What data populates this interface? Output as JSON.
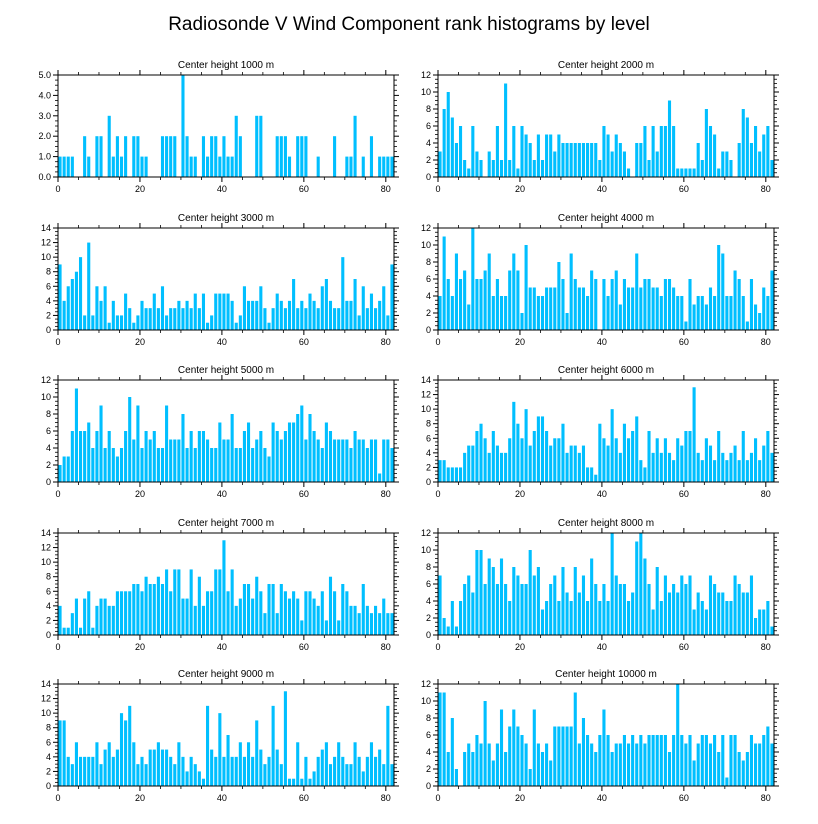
{
  "figure": {
    "title": "Radiosonde V Wind Component rank histograms by level",
    "bar_color": "#00BFFF",
    "axis_color": "#000000"
  },
  "chart_data": [
    {
      "type": "bar",
      "title": "Center height 1000 m",
      "xlabel": "",
      "ylabel": "",
      "xlim": [
        0,
        82
      ],
      "ylim": [
        0,
        5
      ],
      "yticks": [
        0,
        1,
        2,
        3,
        4,
        5
      ],
      "yticklabels": [
        "0.0",
        "1.0",
        "2.0",
        "3.0",
        "4.0",
        "5.0"
      ],
      "xticks": [
        0,
        20,
        40,
        60,
        80
      ],
      "values": [
        1,
        1,
        1,
        1,
        0,
        0,
        2,
        1,
        0,
        2,
        2,
        0,
        3,
        1,
        2,
        1,
        2,
        0,
        2,
        2,
        1,
        1,
        0,
        0,
        0,
        2,
        2,
        2,
        2,
        0,
        5,
        2,
        1,
        1,
        0,
        2,
        1,
        2,
        2,
        1,
        2,
        1,
        1,
        3,
        2,
        0,
        0,
        0,
        3,
        3,
        0,
        0,
        0,
        2,
        2,
        2,
        1,
        0,
        2,
        2,
        2,
        0,
        0,
        1,
        0,
        0,
        0,
        2,
        0,
        0,
        1,
        1,
        3,
        0,
        1,
        0,
        2,
        0,
        1,
        1,
        1,
        1,
        4
      ]
    },
    {
      "type": "bar",
      "title": "Center height 2000 m",
      "xlabel": "",
      "ylabel": "",
      "xlim": [
        0,
        82
      ],
      "ylim": [
        0,
        12
      ],
      "yticks": [
        0,
        2,
        4,
        6,
        8,
        10,
        12
      ],
      "yticklabels": [
        "0",
        "2",
        "4",
        "6",
        "8",
        "10",
        "12"
      ],
      "xticks": [
        0,
        20,
        40,
        60,
        80
      ],
      "values": [
        3,
        8,
        10,
        7,
        4,
        6,
        2,
        1,
        6,
        3,
        2,
        0,
        3,
        2,
        6,
        2,
        11,
        2,
        6,
        1,
        6,
        5,
        4,
        2,
        5,
        2,
        5,
        5,
        3,
        5,
        4,
        4,
        4,
        4,
        4,
        4,
        4,
        4,
        4,
        2,
        6,
        5,
        3,
        5,
        4,
        3,
        1,
        0,
        4,
        4,
        6,
        2,
        6,
        3,
        6,
        6,
        9,
        6,
        1,
        1,
        1,
        1,
        1,
        4,
        2,
        8,
        6,
        5,
        1,
        3,
        3,
        2,
        0,
        4,
        8,
        7,
        4,
        6,
        3,
        5,
        6,
        2,
        4,
        6,
        6,
        3,
        10
      ]
    },
    {
      "type": "bar",
      "title": "Center height 3000 m",
      "xlabel": "",
      "ylabel": "",
      "xlim": [
        0,
        82
      ],
      "ylim": [
        0,
        14
      ],
      "yticks": [
        0,
        2,
        4,
        6,
        8,
        10,
        12,
        14
      ],
      "yticklabels": [
        "0",
        "2",
        "4",
        "6",
        "8",
        "10",
        "12",
        "14"
      ],
      "xticks": [
        0,
        20,
        40,
        60,
        80
      ],
      "values": [
        9,
        4,
        6,
        7,
        8,
        10,
        2,
        12,
        2,
        6,
        4,
        6,
        1,
        4,
        2,
        2,
        5,
        3,
        1,
        2,
        4,
        3,
        3,
        5,
        3,
        6,
        2,
        3,
        3,
        4,
        3,
        4,
        3,
        5,
        3,
        5,
        1,
        2,
        5,
        5,
        5,
        5,
        4,
        1,
        2,
        6,
        4,
        4,
        4,
        6,
        3,
        1,
        3,
        5,
        4,
        3,
        4,
        7,
        3,
        4,
        3,
        5,
        4,
        3,
        6,
        7,
        4,
        3,
        3,
        10,
        4,
        4,
        7,
        2,
        6,
        3,
        5,
        3,
        4,
        6,
        2,
        9,
        13
      ]
    },
    {
      "type": "bar",
      "title": "Center height 4000 m",
      "xlabel": "",
      "ylabel": "",
      "xlim": [
        0,
        82
      ],
      "ylim": [
        0,
        12
      ],
      "yticks": [
        0,
        2,
        4,
        6,
        8,
        10,
        12
      ],
      "yticklabels": [
        "0",
        "2",
        "4",
        "6",
        "8",
        "10",
        "12"
      ],
      "xticks": [
        0,
        20,
        40,
        60,
        80
      ],
      "values": [
        4,
        11,
        6,
        4,
        9,
        6,
        7,
        3,
        12,
        6,
        6,
        7,
        9,
        4,
        6,
        4,
        4,
        7,
        9,
        7,
        2,
        10,
        5,
        5,
        4,
        4,
        5,
        5,
        5,
        8,
        6,
        2,
        9,
        6,
        5,
        5,
        4,
        7,
        6,
        0,
        6,
        4,
        6,
        7,
        3,
        6,
        5,
        5,
        9,
        5,
        6,
        6,
        5,
        5,
        4,
        6,
        6,
        5,
        4,
        4,
        1,
        6,
        3,
        4,
        4,
        3,
        5,
        4,
        10,
        9,
        4,
        4,
        7,
        6,
        4,
        1,
        6,
        3,
        2,
        5,
        4,
        7,
        6,
        7
      ]
    },
    {
      "type": "bar",
      "title": "Center height 5000 m",
      "xlabel": "",
      "ylabel": "",
      "xlim": [
        0,
        82
      ],
      "ylim": [
        0,
        12
      ],
      "yticks": [
        0,
        2,
        4,
        6,
        8,
        10,
        12
      ],
      "yticklabels": [
        "0",
        "2",
        "4",
        "6",
        "8",
        "10",
        "12"
      ],
      "xticks": [
        0,
        20,
        40,
        60,
        80
      ],
      "values": [
        2,
        3,
        3,
        6,
        11,
        6,
        6,
        7,
        4,
        6,
        9,
        4,
        6,
        4,
        3,
        4,
        6,
        10,
        5,
        9,
        4,
        6,
        5,
        6,
        4,
        4,
        9,
        5,
        5,
        5,
        8,
        4,
        6,
        4,
        6,
        6,
        5,
        4,
        4,
        7,
        5,
        5,
        8,
        4,
        4,
        6,
        7,
        4,
        5,
        6,
        4,
        3,
        7,
        6,
        5,
        6,
        7,
        7,
        8,
        9,
        5,
        8,
        6,
        5,
        4,
        7,
        6,
        5,
        5,
        5,
        5,
        4,
        6,
        5,
        5,
        4,
        5,
        5,
        1,
        5,
        5,
        4,
        3,
        4,
        5,
        4,
        6
      ]
    },
    {
      "type": "bar",
      "title": "Center height 6000 m",
      "xlabel": "",
      "ylabel": "",
      "xlim": [
        0,
        82
      ],
      "ylim": [
        0,
        14
      ],
      "yticks": [
        0,
        2,
        4,
        6,
        8,
        10,
        12,
        14
      ],
      "yticklabels": [
        "0",
        "2",
        "4",
        "6",
        "8",
        "10",
        "12",
        "14"
      ],
      "xticks": [
        0,
        20,
        40,
        60,
        80
      ],
      "values": [
        3,
        3,
        2,
        2,
        2,
        2,
        4,
        5,
        5,
        7,
        8,
        6,
        4,
        7,
        5,
        4,
        4,
        6,
        11,
        8,
        6,
        10,
        5,
        7,
        9,
        9,
        7,
        5,
        6,
        6,
        8,
        4,
        5,
        5,
        4,
        5,
        2,
        2,
        1,
        8,
        6,
        5,
        10,
        6,
        4,
        8,
        6,
        7,
        9,
        3,
        2,
        7,
        4,
        6,
        4,
        6,
        4,
        3,
        6,
        5,
        7,
        7,
        13,
        4,
        3,
        6,
        5,
        3,
        7,
        4,
        3,
        4,
        5,
        3,
        7,
        3,
        4,
        6,
        3,
        5,
        7,
        4,
        8
      ]
    },
    {
      "type": "bar",
      "title": "Center height 7000 m",
      "xlabel": "",
      "ylabel": "",
      "xlim": [
        0,
        82
      ],
      "ylim": [
        0,
        14
      ],
      "yticks": [
        0,
        2,
        4,
        6,
        8,
        10,
        12,
        14
      ],
      "yticklabels": [
        "0",
        "2",
        "4",
        "6",
        "8",
        "10",
        "12",
        "14"
      ],
      "xticks": [
        0,
        20,
        40,
        60,
        80
      ],
      "values": [
        4,
        1,
        1,
        3,
        5,
        1,
        5,
        6,
        1,
        4,
        5,
        5,
        4,
        4,
        6,
        6,
        6,
        6,
        7,
        7,
        6,
        8,
        7,
        7,
        8,
        7,
        9,
        6,
        9,
        9,
        5,
        5,
        9,
        4,
        8,
        4,
        6,
        6,
        9,
        9,
        13,
        6,
        9,
        4,
        5,
        7,
        7,
        5,
        8,
        6,
        3,
        7,
        7,
        3,
        7,
        6,
        5,
        6,
        5,
        2,
        6,
        6,
        5,
        4,
        6,
        2,
        8,
        6,
        2,
        7,
        6,
        4,
        4,
        3,
        7,
        4,
        3,
        4,
        3,
        5,
        3,
        3,
        2,
        3,
        4
      ]
    },
    {
      "type": "bar",
      "title": "Center height 8000 m",
      "xlabel": "",
      "ylabel": "",
      "xlim": [
        0,
        82
      ],
      "ylim": [
        0,
        12
      ],
      "yticks": [
        0,
        2,
        4,
        6,
        8,
        10,
        12
      ],
      "yticklabels": [
        "0",
        "2",
        "4",
        "6",
        "8",
        "10",
        "12"
      ],
      "xticks": [
        0,
        20,
        40,
        60,
        80
      ],
      "values": [
        7,
        2,
        1,
        4,
        1,
        4,
        6,
        7,
        5,
        10,
        10,
        6,
        9,
        8,
        6,
        9,
        6,
        4,
        8,
        7,
        6,
        6,
        10,
        7,
        8,
        3,
        4,
        6,
        7,
        4,
        8,
        5,
        4,
        8,
        5,
        7,
        4,
        9,
        6,
        4,
        6,
        4,
        12,
        7,
        6,
        6,
        4,
        5,
        11,
        12,
        9,
        6,
        3,
        8,
        4,
        7,
        5,
        6,
        5,
        7,
        6,
        7,
        3,
        5,
        4,
        3,
        7,
        6,
        5,
        5,
        4,
        4,
        7,
        6,
        5,
        5,
        7,
        2,
        3,
        3,
        4,
        1,
        6
      ]
    },
    {
      "type": "bar",
      "title": "Center height 9000 m",
      "xlabel": "",
      "ylabel": "",
      "xlim": [
        0,
        82
      ],
      "ylim": [
        0,
        14
      ],
      "yticks": [
        0,
        2,
        4,
        6,
        8,
        10,
        12,
        14
      ],
      "yticklabels": [
        "0",
        "2",
        "4",
        "6",
        "8",
        "10",
        "12",
        "14"
      ],
      "xticks": [
        0,
        20,
        40,
        60,
        80
      ],
      "values": [
        9,
        9,
        4,
        3,
        6,
        4,
        4,
        4,
        4,
        6,
        3,
        5,
        6,
        4,
        5,
        10,
        9,
        11,
        6,
        3,
        4,
        3,
        5,
        5,
        6,
        5,
        5,
        4,
        3,
        6,
        4,
        2,
        4,
        3,
        2,
        1,
        11,
        5,
        4,
        10,
        4,
        7,
        4,
        4,
        6,
        4,
        6,
        4,
        9,
        5,
        3,
        4,
        11,
        5,
        3,
        13,
        1,
        1,
        6,
        1,
        4,
        1,
        2,
        4,
        5,
        6,
        3,
        4,
        6,
        4,
        3,
        3,
        6,
        4,
        2,
        4,
        6,
        4,
        5,
        3,
        11,
        3,
        6
      ]
    },
    {
      "type": "bar",
      "title": "Center height 10000 m",
      "xlabel": "",
      "ylabel": "",
      "xlim": [
        0,
        82
      ],
      "ylim": [
        0,
        12
      ],
      "yticks": [
        0,
        2,
        4,
        6,
        8,
        10,
        12
      ],
      "yticklabels": [
        "0",
        "2",
        "4",
        "6",
        "8",
        "10",
        "12"
      ],
      "xticks": [
        0,
        20,
        40,
        60,
        80
      ],
      "values": [
        11,
        11,
        4,
        8,
        2,
        0,
        4,
        5,
        4,
        6,
        5,
        10,
        5,
        3,
        5,
        9,
        4,
        7,
        9,
        7,
        6,
        5,
        2,
        9,
        5,
        4,
        5,
        3,
        7,
        7,
        7,
        7,
        7,
        11,
        5,
        8,
        6,
        5,
        4,
        6,
        9,
        6,
        4,
        5,
        5,
        6,
        5,
        6,
        5,
        6,
        5,
        6,
        6,
        6,
        6,
        6,
        4,
        6,
        12,
        6,
        5,
        6,
        3,
        5,
        6,
        6,
        5,
        6,
        4,
        6,
        1,
        6,
        6,
        4,
        3,
        4,
        6,
        5,
        5,
        6,
        7,
        5,
        5,
        6,
        4
      ]
    }
  ]
}
